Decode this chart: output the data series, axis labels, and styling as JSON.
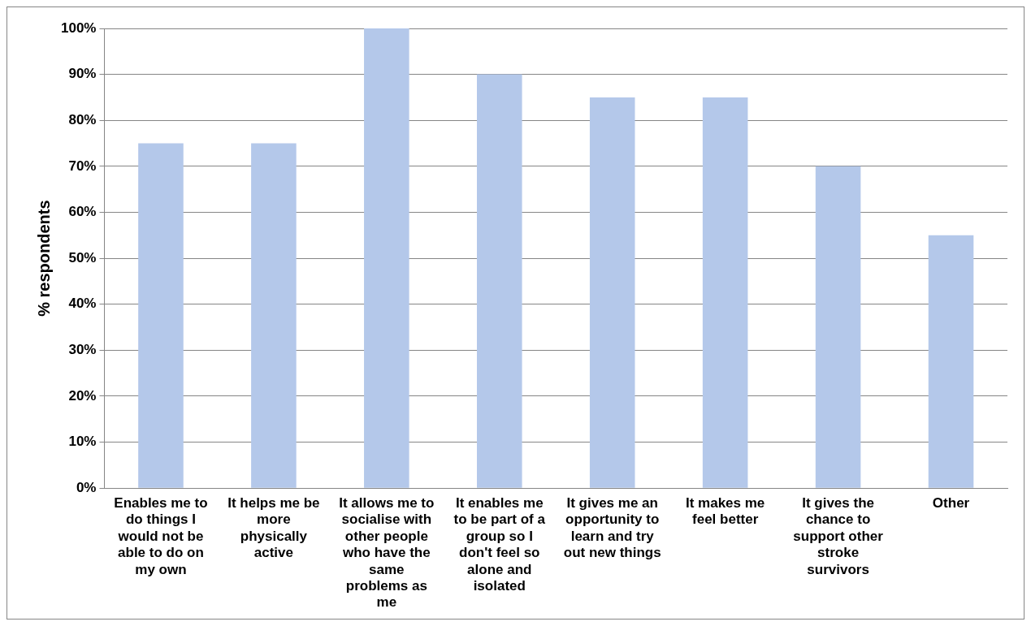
{
  "chart_data": {
    "type": "bar",
    "ylabel": "% respondents",
    "categories": [
      "Enables me to do things I would not be able to do on my own",
      "It helps me be more physically active",
      "It allows me to socialise with other people who have the same problems as me",
      "It enables me to be part of a group so I don't feel so alone and isolated",
      "It gives me an opportunity to learn and try out new things",
      "It makes me feel better",
      "It gives the chance to support other stroke survivors",
      "Other"
    ],
    "values": [
      75,
      75,
      100,
      90,
      85,
      85,
      70,
      55
    ],
    "color": "#b4c8ea",
    "ylim": [
      0,
      100
    ],
    "yticks": [
      {
        "value": 0,
        "label": "0%"
      },
      {
        "value": 10,
        "label": "10%"
      },
      {
        "value": 20,
        "label": "20%"
      },
      {
        "value": 30,
        "label": "30%"
      },
      {
        "value": 40,
        "label": "40%"
      },
      {
        "value": 50,
        "label": "50%"
      },
      {
        "value": 60,
        "label": "60%"
      },
      {
        "value": 70,
        "label": "70%"
      },
      {
        "value": 80,
        "label": "80%"
      },
      {
        "value": 90,
        "label": "90%"
      },
      {
        "value": 100,
        "label": "100%"
      }
    ],
    "grid": "y",
    "legend": false
  }
}
